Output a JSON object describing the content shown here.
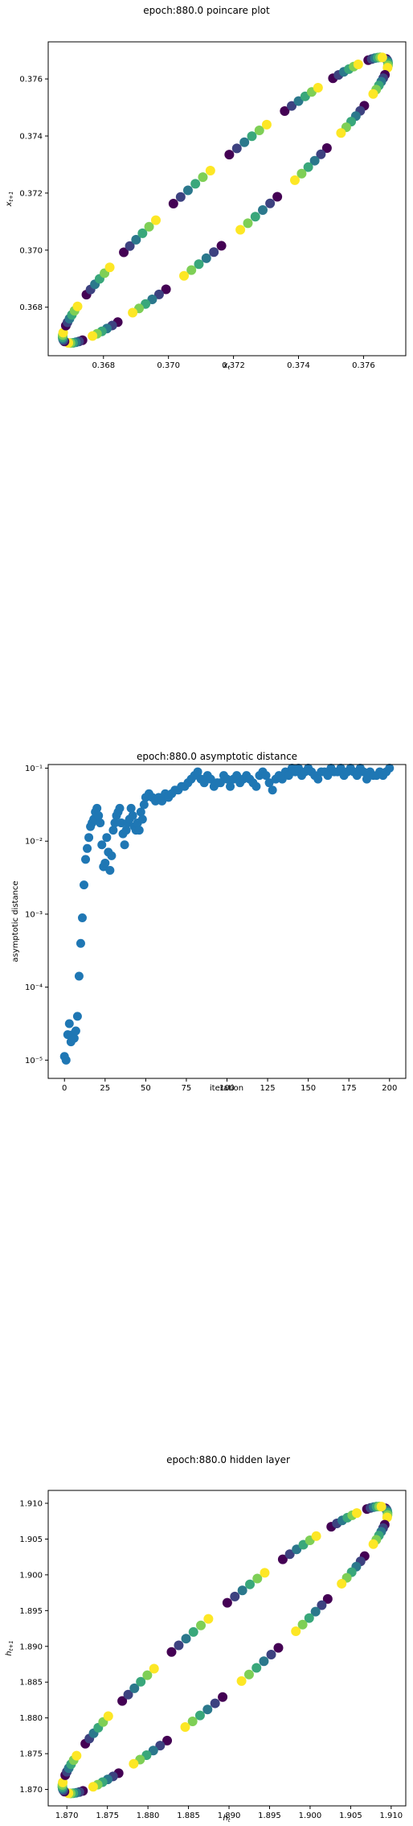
{
  "colors": {
    "viridis": [
      "#440154",
      "#3b528b",
      "#21918c",
      "#5ec962",
      "#fde725"
    ],
    "scatter": "#1f77b4"
  },
  "chart_data": [
    {
      "type": "scatter",
      "title": "epoch:880.0 poincare plot",
      "xlabel": "x_t",
      "ylabel": "x_{t+1}",
      "xlim": [
        0.3663,
        0.3773
      ],
      "ylim": [
        0.3663,
        0.3773
      ],
      "xticks": [
        "0.368",
        "0.370",
        "0.372",
        "0.374",
        "0.376"
      ],
      "yticks": [
        "0.368",
        "0.370",
        "0.372",
        "0.374",
        "0.376"
      ],
      "xtick_values": [
        0.368,
        0.37,
        0.372,
        0.374,
        0.376
      ],
      "ytick_values": [
        0.368,
        0.37,
        0.372,
        0.374,
        0.376
      ],
      "colormap": "viridis",
      "ellipse": {
        "center": [
          0.37175,
          0.37175
        ],
        "major_halfdiag": 0.00495,
        "minor_halfdiag": 0.00075
      },
      "points": 108
    },
    {
      "type": "scatter",
      "title": "epoch:880.0 asymptotic distance",
      "xlabel": "iteration",
      "ylabel": "asymptotic distance",
      "xlim": [
        -10,
        210
      ],
      "ylim_log10": [
        -5.25,
        -0.95
      ],
      "yscale": "log",
      "xticks": [
        "0",
        "25",
        "50",
        "75",
        "100",
        "125",
        "150",
        "175",
        "200"
      ],
      "xtick_values": [
        0,
        25,
        50,
        75,
        100,
        125,
        150,
        175,
        200
      ],
      "yticks": [
        "10⁻⁵",
        "10⁻⁴",
        "10⁻³",
        "10⁻²",
        "10⁻¹"
      ],
      "ytick_exponents": [
        -5,
        -4,
        -3,
        -2,
        -1
      ],
      "x": [
        0,
        1,
        2,
        3,
        4,
        5,
        6,
        7,
        8,
        9,
        10,
        11,
        12,
        13,
        14,
        15,
        16,
        17,
        18,
        19,
        20,
        21,
        22,
        23,
        24,
        25,
        26,
        27,
        28,
        29,
        30,
        31,
        32,
        33,
        34,
        35,
        36,
        37,
        38,
        39,
        40,
        41,
        42,
        43,
        44,
        45,
        46,
        47,
        48,
        49,
        50,
        52,
        54,
        56,
        58,
        60,
        62,
        64,
        66,
        68,
        70,
        72,
        74,
        76,
        78,
        80,
        82,
        84,
        86,
        88,
        90,
        92,
        94,
        96,
        98,
        100,
        102,
        104,
        106,
        108,
        110,
        112,
        114,
        116,
        118,
        120,
        122,
        124,
        126,
        128,
        130,
        132,
        134,
        136,
        138,
        140,
        142,
        144,
        146,
        148,
        150,
        152,
        154,
        156,
        158,
        160,
        162,
        164,
        166,
        168,
        170,
        172,
        174,
        176,
        178,
        180,
        182,
        184,
        186,
        188,
        190,
        192,
        194,
        196,
        198,
        200
      ],
      "y_log10": [
        -4.95,
        -5.0,
        -4.65,
        -4.5,
        -4.75,
        -4.65,
        -4.7,
        -4.6,
        -4.4,
        -3.85,
        -3.4,
        -3.05,
        -2.6,
        -2.25,
        -2.1,
        -1.95,
        -1.8,
        -1.75,
        -1.7,
        -1.6,
        -1.55,
        -1.65,
        -1.75,
        -2.05,
        -2.35,
        -2.3,
        -1.95,
        -2.15,
        -2.4,
        -2.2,
        -1.85,
        -1.75,
        -1.65,
        -1.6,
        -1.55,
        -1.75,
        -1.9,
        -2.05,
        -1.85,
        -1.75,
        -1.7,
        -1.55,
        -1.65,
        -1.8,
        -1.85,
        -1.75,
        -1.85,
        -1.6,
        -1.7,
        -1.5,
        -1.4,
        -1.35,
        -1.4,
        -1.45,
        -1.4,
        -1.45,
        -1.35,
        -1.4,
        -1.35,
        -1.3,
        -1.3,
        -1.25,
        -1.25,
        -1.2,
        -1.15,
        -1.1,
        -1.05,
        -1.15,
        -1.2,
        -1.1,
        -1.15,
        -1.25,
        -1.2,
        -1.2,
        -1.1,
        -1.15,
        -1.25,
        -1.15,
        -1.1,
        -1.2,
        -1.15,
        -1.1,
        -1.15,
        -1.2,
        -1.25,
        -1.1,
        -1.05,
        -1.1,
        -1.2,
        -1.3,
        -1.15,
        -1.1,
        -1.15,
        -1.05,
        -1.1,
        -1.0,
        -1.05,
        -1.0,
        -1.1,
        -1.05,
        -1.0,
        -1.05,
        -1.1,
        -1.15,
        -1.05,
        -1.05,
        -1.1,
        -1.0,
        -1.05,
        -1.05,
        -1.0,
        -1.1,
        -1.05,
        -1.0,
        -1.05,
        -1.1,
        -1.0,
        -1.05,
        -1.15,
        -1.05,
        -1.1,
        -1.1,
        -1.05,
        -1.1,
        -1.05,
        -1.0
      ]
    },
    {
      "type": "scatter",
      "title": "epoch:880.0 hidden layer",
      "xlabel": "h_t",
      "ylabel": "h_{t+1}",
      "xlim": [
        1.8677,
        1.9118
      ],
      "ylim": [
        1.8677,
        1.9118
      ],
      "xticks": [
        "1.870",
        "1.875",
        "1.880",
        "1.885",
        "1.890",
        "1.895",
        "1.900",
        "1.905",
        "1.910"
      ],
      "xtick_values": [
        1.87,
        1.875,
        1.88,
        1.885,
        1.89,
        1.895,
        1.9,
        1.905,
        1.91
      ],
      "yticks": [
        "1.870",
        "1.875",
        "1.880",
        "1.885",
        "1.890",
        "1.895",
        "1.900",
        "1.905",
        "1.910"
      ],
      "ytick_values": [
        1.87,
        1.875,
        1.88,
        1.885,
        1.89,
        1.895,
        1.9,
        1.905,
        1.91
      ],
      "colormap": "viridis",
      "ellipse": {
        "center": [
          1.8895,
          1.8895
        ],
        "major_halfdiag": 0.0198,
        "minor_halfdiag": 0.0032
      },
      "points": 108
    }
  ]
}
